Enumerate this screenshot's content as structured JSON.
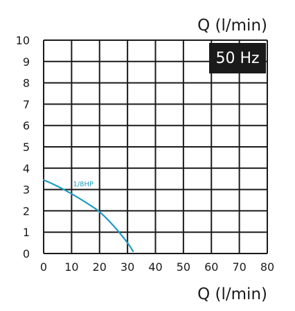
{
  "chart_data": {
    "type": "line",
    "title": "",
    "xlabel": "Q (l/min)",
    "ylabel": "Q (l/min)",
    "xlim": [
      0,
      80
    ],
    "ylim": [
      0,
      10
    ],
    "x_ticks": [
      0,
      10,
      20,
      30,
      40,
      50,
      60,
      70,
      80
    ],
    "y_ticks": [
      0,
      1,
      2,
      3,
      4,
      5,
      6,
      7,
      8,
      9,
      10
    ],
    "grid": true,
    "badge": "50 Hz",
    "series": [
      {
        "name": "1/8HP",
        "color": "#1e9bbf",
        "x": [
          0,
          5,
          10,
          15,
          20,
          25,
          30,
          32
        ],
        "y": [
          3.45,
          3.15,
          2.8,
          2.4,
          1.95,
          1.3,
          0.5,
          0.1
        ]
      }
    ]
  }
}
